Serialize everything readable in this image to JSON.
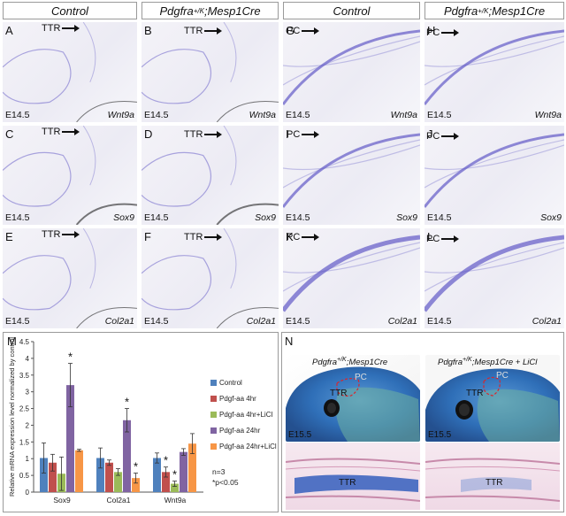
{
  "headers": {
    "col1": "Control",
    "col2": "Pdgfra",
    "col2_sup": "+/K",
    "col2_rest": ";Mesp1Cre",
    "col3": "Control",
    "col4": "Pdgfra",
    "col4_sup": "+/K",
    "col4_rest": ";Mesp1Cre"
  },
  "panels": [
    {
      "letter": "A",
      "stage": "E14.5",
      "gene": "Wnt9a",
      "arrow": "TTR"
    },
    {
      "letter": "B",
      "stage": "E14.5",
      "gene": "Wnt9a",
      "arrow": "TTR"
    },
    {
      "letter": "G",
      "stage": "E14.5",
      "gene": "Wnt9a",
      "arrow": "PC"
    },
    {
      "letter": "H",
      "stage": "E14.5",
      "gene": "Wnt9a",
      "arrow": "PC"
    },
    {
      "letter": "C",
      "stage": "E14.5",
      "gene": "Sox9",
      "arrow": "TTR"
    },
    {
      "letter": "D",
      "stage": "E14.5",
      "gene": "Sox9",
      "arrow": "TTR"
    },
    {
      "letter": "I",
      "stage": "E14.5",
      "gene": "Sox9",
      "arrow": "PC"
    },
    {
      "letter": "J",
      "stage": "E14.5",
      "gene": "Sox9",
      "arrow": "PC"
    },
    {
      "letter": "E",
      "stage": "E14.5",
      "gene": "Col2a1",
      "arrow": "TTR"
    },
    {
      "letter": "F",
      "stage": "E14.5",
      "gene": "Col2a1",
      "arrow": "TTR"
    },
    {
      "letter": "K",
      "stage": "E14.5",
      "gene": "Col2a1",
      "arrow": "PC"
    },
    {
      "letter": "L",
      "stage": "E14.5",
      "gene": "Col2a1",
      "arrow": "PC"
    }
  ],
  "chart_data": {
    "type": "bar",
    "panel_letter": "M",
    "ylabel": "Relative mRNA expression level normalized by control",
    "ylim": [
      0,
      4.5
    ],
    "yticks": [
      0,
      0.5,
      1,
      1.5,
      2,
      2.5,
      3,
      3.5,
      4,
      4.5
    ],
    "categories": [
      "Sox9",
      "Col2a1",
      "Wnt9a"
    ],
    "series": [
      {
        "name": "Control",
        "color": "#4f81bd",
        "values": [
          1.02,
          1.02,
          1.02
        ],
        "errors": [
          0.45,
          0.3,
          0.15
        ]
      },
      {
        "name": "Pdgf-aa 4hr",
        "color": "#c0504d",
        "values": [
          0.88,
          0.88,
          0.6
        ],
        "errors": [
          0.25,
          0.08,
          0.15
        ]
      },
      {
        "name": "Pdgf-aa 4hr+LiCl",
        "color": "#9bbb59",
        "values": [
          0.55,
          0.6,
          0.25
        ],
        "errors": [
          0.5,
          0.1,
          0.08
        ]
      },
      {
        "name": "Pdgf-aa 24hr",
        "color": "#8064a2",
        "values": [
          3.2,
          2.15,
          1.2
        ],
        "errors": [
          0.65,
          0.35,
          0.1
        ]
      },
      {
        "name": "Pdgf-aa 24hr+LiCl",
        "color": "#f79646",
        "values": [
          1.25,
          0.42,
          1.45
        ],
        "errors": [
          0.03,
          0.15,
          0.3
        ]
      }
    ],
    "significance": [
      {
        "category": "Sox9",
        "series": "Pdgf-aa 24hr",
        "mark": "*"
      },
      {
        "category": "Col2a1",
        "series": "Pdgf-aa 24hr",
        "mark": "*"
      },
      {
        "category": "Col2a1",
        "series": "Pdgf-aa 24hr+LiCl",
        "mark": "*"
      },
      {
        "category": "Wnt9a",
        "series": "Pdgf-aa 4hr",
        "mark": "*"
      },
      {
        "category": "Wnt9a",
        "series": "Pdgf-aa 4hr+LiCl",
        "mark": "*"
      }
    ],
    "notes": [
      "n=3",
      "*p<0.05"
    ]
  },
  "panel_n": {
    "letter": "N",
    "left_title": "Pdgfra",
    "left_title_sup": "+/K",
    "left_title_rest": ";Mesp1Cre",
    "right_title": "Pdgfra",
    "right_title_sup": "+/K",
    "right_title_rest": ";Mesp1Cre + LiCl",
    "stage": "E15.5",
    "labels": [
      "TTR",
      "PC"
    ]
  },
  "colors": {
    "stain": "#6b63c9",
    "panel_bg": "#efeef6",
    "alcian": "#3f78c8",
    "histo_pink": "#efd9e6"
  }
}
